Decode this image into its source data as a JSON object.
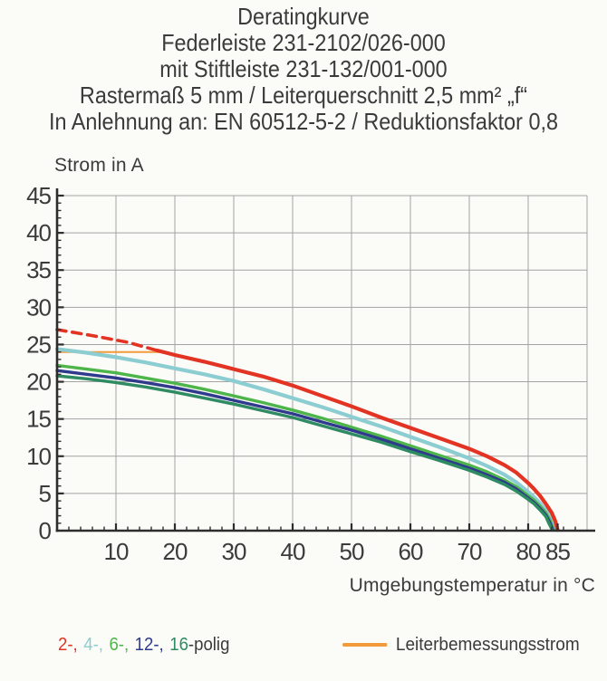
{
  "title": {
    "lines": [
      "Deratingkurve",
      "Federleiste 231-2102/026-000",
      "mit Stiftleiste 231-132/001-000",
      "Rastermaß 5 mm / Leiterquerschnitt 2,5 mm² „f“",
      "In Anlehnung an: EN 60512-5-2 / Reduktionsfaktor 0,8"
    ]
  },
  "chart": {
    "y_axis_label": "Strom in A",
    "x_axis_label": "Umgebungstemperatur in °C",
    "x_ticks": [
      10,
      20,
      30,
      40,
      50,
      60,
      70,
      80,
      85
    ],
    "y_ticks": [
      0,
      5,
      10,
      15,
      20,
      25,
      30,
      35,
      40,
      45
    ]
  },
  "chart_data": {
    "type": "line",
    "title": "Deratingkurve",
    "xlabel": "Umgebungstemperatur in °C",
    "ylabel": "Strom in A",
    "xlim": [
      0,
      90
    ],
    "ylim": [
      0,
      45
    ],
    "grid": true,
    "colors": {
      "grid": "#a3a3a3",
      "axis": "#2d2d2d",
      "text": "#3b3b3b"
    },
    "series": [
      {
        "name": "Leiterbemessungsstrom",
        "color": "#f39a3b",
        "width": 2,
        "style": "solid",
        "points": [
          [
            0,
            24
          ],
          [
            17.5,
            24
          ]
        ]
      },
      {
        "name": "2-polig (gestrichelt, oberhalb Leiterbemessungsstrom)",
        "color": "#e23323",
        "width": 3.6,
        "style": "dashed",
        "dash": "10 7",
        "points": [
          [
            0,
            27
          ],
          [
            6,
            26.2
          ],
          [
            12,
            25.3
          ],
          [
            17,
            24.2
          ]
        ]
      },
      {
        "name": "4-polig",
        "color": "#8ccdd2",
        "width": 4.2,
        "style": "solid",
        "points": [
          [
            0,
            24.4
          ],
          [
            5,
            23.9
          ],
          [
            10,
            23.3
          ],
          [
            15,
            22.6
          ],
          [
            20,
            21.8
          ],
          [
            25,
            21.0
          ],
          [
            30,
            20.1
          ],
          [
            35,
            19.0
          ],
          [
            40,
            17.8
          ],
          [
            45,
            16.6
          ],
          [
            50,
            15.3
          ],
          [
            55,
            14.0
          ],
          [
            60,
            12.6
          ],
          [
            65,
            11.2
          ],
          [
            70,
            9.7
          ],
          [
            73,
            8.7
          ],
          [
            76,
            7.5
          ],
          [
            78,
            6.5
          ],
          [
            80,
            5.2
          ],
          [
            81,
            4.5
          ],
          [
            82,
            3.7
          ],
          [
            83,
            2.7
          ],
          [
            83.8,
            1.6
          ],
          [
            84.4,
            0.1
          ]
        ]
      },
      {
        "name": "6-polig",
        "color": "#4db54a",
        "width": 3.4,
        "style": "solid",
        "points": [
          [
            0,
            22.2
          ],
          [
            5,
            21.7
          ],
          [
            10,
            21.2
          ],
          [
            15,
            20.5
          ],
          [
            20,
            19.8
          ],
          [
            25,
            19.0
          ],
          [
            30,
            18.1
          ],
          [
            35,
            17.2
          ],
          [
            40,
            16.2
          ],
          [
            45,
            15.1
          ],
          [
            50,
            13.9
          ],
          [
            55,
            12.7
          ],
          [
            60,
            11.4
          ],
          [
            65,
            10.1
          ],
          [
            70,
            8.8
          ],
          [
            73,
            7.9
          ],
          [
            76,
            6.8
          ],
          [
            78,
            5.9
          ],
          [
            80,
            4.7
          ],
          [
            81,
            4.1
          ],
          [
            82,
            3.3
          ],
          [
            83,
            2.4
          ],
          [
            83.7,
            1.4
          ],
          [
            84.3,
            0.1
          ]
        ]
      },
      {
        "name": "12-polig",
        "color": "#2f3a8d",
        "width": 3.4,
        "style": "solid",
        "points": [
          [
            0,
            21.5
          ],
          [
            5,
            21.0
          ],
          [
            10,
            20.5
          ],
          [
            15,
            19.9
          ],
          [
            20,
            19.2
          ],
          [
            25,
            18.4
          ],
          [
            30,
            17.5
          ],
          [
            35,
            16.6
          ],
          [
            40,
            15.7
          ],
          [
            45,
            14.6
          ],
          [
            50,
            13.5
          ],
          [
            55,
            12.3
          ],
          [
            60,
            11.0
          ],
          [
            65,
            9.7
          ],
          [
            70,
            8.4
          ],
          [
            73,
            7.5
          ],
          [
            76,
            6.5
          ],
          [
            78,
            5.6
          ],
          [
            80,
            4.4
          ],
          [
            81,
            3.8
          ],
          [
            82,
            3.0
          ],
          [
            83,
            2.1
          ],
          [
            83.6,
            1.2
          ],
          [
            84.2,
            0.1
          ]
        ]
      },
      {
        "name": "16-polig",
        "color": "#2e8b62",
        "width": 3.4,
        "style": "solid",
        "points": [
          [
            0,
            20.8
          ],
          [
            5,
            20.4
          ],
          [
            10,
            19.9
          ],
          [
            15,
            19.3
          ],
          [
            20,
            18.6
          ],
          [
            25,
            17.8
          ],
          [
            30,
            17.0
          ],
          [
            35,
            16.1
          ],
          [
            40,
            15.2
          ],
          [
            45,
            14.1
          ],
          [
            50,
            13.0
          ],
          [
            55,
            11.9
          ],
          [
            60,
            10.6
          ],
          [
            65,
            9.4
          ],
          [
            70,
            8.1
          ],
          [
            73,
            7.2
          ],
          [
            76,
            6.2
          ],
          [
            78,
            5.3
          ],
          [
            80,
            4.2
          ],
          [
            81,
            3.6
          ],
          [
            82,
            2.8
          ],
          [
            83,
            1.9
          ],
          [
            83.5,
            1.0
          ],
          [
            84.1,
            0.1
          ]
        ]
      },
      {
        "name": "2-polig",
        "color": "#e23323",
        "width": 4.2,
        "style": "solid",
        "points": [
          [
            17,
            24.2
          ],
          [
            20,
            23.6
          ],
          [
            25,
            22.7
          ],
          [
            30,
            21.7
          ],
          [
            35,
            20.7
          ],
          [
            40,
            19.5
          ],
          [
            45,
            18.1
          ],
          [
            50,
            16.7
          ],
          [
            55,
            15.2
          ],
          [
            60,
            13.8
          ],
          [
            65,
            12.4
          ],
          [
            70,
            11.0
          ],
          [
            73,
            10.0
          ],
          [
            76,
            8.8
          ],
          [
            78,
            7.8
          ],
          [
            80,
            6.4
          ],
          [
            81,
            5.6
          ],
          [
            82,
            4.7
          ],
          [
            83,
            3.6
          ],
          [
            84,
            2.4
          ],
          [
            84.6,
            1.3
          ],
          [
            85,
            0.1
          ]
        ]
      }
    ]
  },
  "legend": {
    "pole_items": [
      {
        "label": "2-,",
        "color": "#e23323"
      },
      {
        "label": "4-,",
        "color": "#8ccdd2"
      },
      {
        "label": "6-,",
        "color": "#4db54a"
      },
      {
        "label": "12-,",
        "color": "#2f3a8d"
      },
      {
        "label": "16",
        "color": "#2e8b62"
      }
    ],
    "pole_suffix": "-polig",
    "rated_label": "Leiterbemessungsstrom",
    "rated_color": "#f39a3b"
  }
}
